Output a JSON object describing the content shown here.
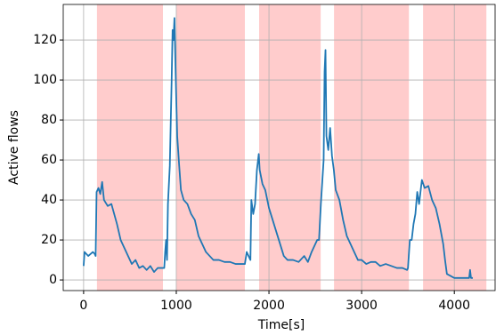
{
  "chart_data": {
    "type": "line",
    "xlabel": "Time[s]",
    "ylabel": "Active flows",
    "xlim": [
      -220,
      4440
    ],
    "ylim": [
      -5.3,
      137.8
    ],
    "xticks": [
      0,
      1000,
      2000,
      3000,
      4000
    ],
    "yticks": [
      0,
      20,
      40,
      60,
      80,
      100,
      120
    ],
    "grid": true,
    "shaded_regions": [
      [
        144,
        856
      ],
      [
        1000,
        1740
      ],
      [
        1894,
        2558
      ],
      [
        2702,
        3510
      ],
      [
        3663,
        4346
      ]
    ],
    "shade_color": "#ffcccc",
    "x": [
      0,
      10,
      50,
      100,
      120,
      130,
      140,
      160,
      180,
      200,
      220,
      260,
      300,
      330,
      360,
      400,
      440,
      480,
      520,
      560,
      600,
      640,
      680,
      720,
      760,
      800,
      850,
      870,
      880,
      890,
      900,
      910,
      930,
      950,
      960,
      970,
      980,
      990,
      1000,
      1010,
      1030,
      1050,
      1080,
      1120,
      1160,
      1200,
      1240,
      1280,
      1320,
      1360,
      1400,
      1460,
      1520,
      1580,
      1640,
      1700,
      1740,
      1760,
      1780,
      1800,
      1810,
      1830,
      1850,
      1870,
      1890,
      1900,
      1930,
      1960,
      2000,
      2040,
      2080,
      2120,
      2160,
      2200,
      2260,
      2320,
      2380,
      2420,
      2460,
      2500,
      2520,
      2540,
      2560,
      2590,
      2600,
      2610,
      2620,
      2640,
      2660,
      2680,
      2700,
      2720,
      2760,
      2800,
      2840,
      2880,
      2920,
      2960,
      3000,
      3050,
      3100,
      3150,
      3200,
      3260,
      3320,
      3380,
      3440,
      3490,
      3500,
      3520,
      3540,
      3560,
      3580,
      3600,
      3620,
      3650,
      3680,
      3720,
      3760,
      3800,
      3840,
      3880,
      3900,
      3920,
      3960,
      4000,
      4100,
      4160,
      4170,
      4180,
      4200
    ],
    "series": [
      {
        "name": "Active flows",
        "color": "#1f77b4",
        "values": [
          7,
          14,
          12,
          14,
          13,
          12,
          44,
          46,
          43,
          49,
          40,
          37,
          38,
          33,
          28,
          20,
          16,
          12,
          8,
          10,
          6,
          7,
          5,
          7,
          4,
          6,
          6,
          6,
          14,
          20,
          10,
          38,
          57,
          100,
          125,
          120,
          131,
          110,
          90,
          72,
          58,
          45,
          40,
          38,
          33,
          30,
          22,
          18,
          14,
          12,
          10,
          10,
          9,
          9,
          8,
          8,
          8,
          14,
          12,
          10,
          40,
          33,
          38,
          55,
          63,
          55,
          48,
          45,
          36,
          30,
          24,
          18,
          12,
          10,
          10,
          9,
          12,
          9,
          14,
          18,
          20,
          20,
          38,
          60,
          104,
          115,
          72,
          65,
          76,
          62,
          55,
          45,
          40,
          30,
          22,
          18,
          14,
          10,
          10,
          8,
          9,
          9,
          7,
          8,
          7,
          6,
          6,
          5,
          6,
          20,
          20,
          28,
          33,
          44,
          38,
          50,
          46,
          47,
          40,
          36,
          28,
          18,
          10,
          3,
          2,
          1,
          1,
          1,
          5,
          1,
          1
        ]
      }
    ]
  }
}
